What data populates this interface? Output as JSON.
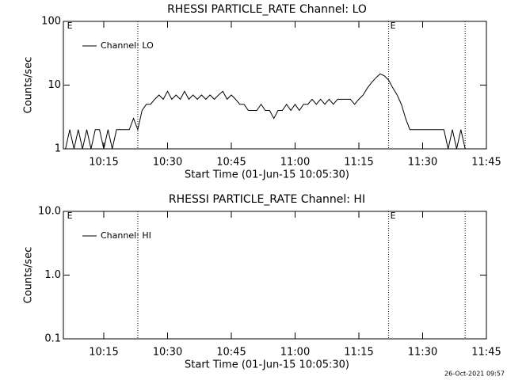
{
  "chart_data": [
    {
      "type": "line",
      "title": "RHESSI PARTICLE_RATE Channel: LO",
      "xlabel": "Start Time (01-Jun-15 10:05:30)",
      "ylabel": "Counts/sec",
      "log_y": true,
      "legend": "upper left",
      "xlim": [
        "10:05:30",
        "11:45"
      ],
      "xticks": [
        "10:15",
        "10:30",
        "10:45",
        "11:00",
        "11:15",
        "11:30",
        "11:45"
      ],
      "ylim": [
        1,
        100
      ],
      "yticks": [
        1,
        10,
        100
      ],
      "vlines": [
        "10:23",
        "11:22",
        "11:40"
      ],
      "annotations": [
        {
          "text": "E",
          "x": "10:06"
        },
        {
          "text": "E",
          "x": "11:22"
        }
      ],
      "x": [
        "10:06",
        "10:07",
        "10:08",
        "10:09",
        "10:10",
        "10:11",
        "10:12",
        "10:13",
        "10:14",
        "10:15",
        "10:16",
        "10:17",
        "10:18",
        "10:19",
        "10:20",
        "10:21",
        "10:22",
        "10:23",
        "10:24",
        "10:25",
        "10:26",
        "10:27",
        "10:28",
        "10:29",
        "10:30",
        "10:31",
        "10:32",
        "10:33",
        "10:34",
        "10:35",
        "10:36",
        "10:37",
        "10:38",
        "10:39",
        "10:40",
        "10:41",
        "10:42",
        "10:43",
        "10:44",
        "10:45",
        "10:46",
        "10:47",
        "10:48",
        "10:49",
        "10:50",
        "10:51",
        "10:52",
        "10:53",
        "10:54",
        "10:55",
        "10:56",
        "10:57",
        "10:58",
        "10:59",
        "11:00",
        "11:01",
        "11:02",
        "11:03",
        "11:04",
        "11:05",
        "11:06",
        "11:07",
        "11:08",
        "11:09",
        "11:10",
        "11:11",
        "11:12",
        "11:13",
        "11:14",
        "11:15",
        "11:16",
        "11:17",
        "11:18",
        "11:19",
        "11:20",
        "11:21",
        "11:22",
        "11:23",
        "11:24",
        "11:25",
        "11:26",
        "11:27",
        "11:28",
        "11:29",
        "11:30",
        "11:31",
        "11:32",
        "11:33",
        "11:34",
        "11:35",
        "11:36",
        "11:37",
        "11:38",
        "11:39",
        "11:40"
      ],
      "series": [
        {
          "name": "Channel: LO",
          "color": "#000000",
          "values": [
            1,
            2,
            1,
            2,
            1,
            2,
            1,
            2,
            2,
            1,
            2,
            1,
            2,
            2,
            2,
            2,
            3,
            2,
            4,
            5,
            5,
            6,
            7,
            6,
            8,
            6,
            7,
            6,
            8,
            6,
            7,
            6,
            7,
            6,
            7,
            6,
            7,
            8,
            6,
            7,
            6,
            5,
            5,
            4,
            4,
            4,
            5,
            4,
            4,
            3,
            4,
            4,
            5,
            4,
            5,
            4,
            5,
            5,
            6,
            5,
            6,
            5,
            6,
            5,
            6,
            6,
            6,
            6,
            5,
            6,
            7,
            9,
            11,
            13,
            15,
            14,
            12,
            9,
            7,
            5,
            3,
            2,
            2,
            2,
            2,
            2,
            2,
            2,
            2,
            2,
            1,
            2,
            1,
            2,
            1
          ]
        }
      ]
    },
    {
      "type": "line",
      "title": "RHESSI PARTICLE_RATE Channel: HI",
      "xlabel": "Start Time (01-Jun-15 10:05:30)",
      "ylabel": "Counts/sec",
      "log_y": true,
      "legend": "upper left",
      "xlim": [
        "10:05:30",
        "11:45"
      ],
      "xticks": [
        "10:15",
        "10:30",
        "10:45",
        "11:00",
        "11:15",
        "11:30",
        "11:45"
      ],
      "ylim": [
        0.1,
        10
      ],
      "yticks": [
        0.1,
        {
          "value": 1,
          "label": "1.0"
        },
        {
          "value": 10,
          "label": "10.0"
        }
      ],
      "vlines": [
        "10:23",
        "11:22",
        "11:40"
      ],
      "annotations": [
        {
          "text": "E",
          "x": "10:06"
        },
        {
          "text": "E",
          "x": "11:22"
        }
      ],
      "x": [],
      "series": [
        {
          "name": "Channel: HI",
          "color": "#000000",
          "values": []
        }
      ]
    }
  ],
  "footer": "26-Oct-2021 09:57"
}
